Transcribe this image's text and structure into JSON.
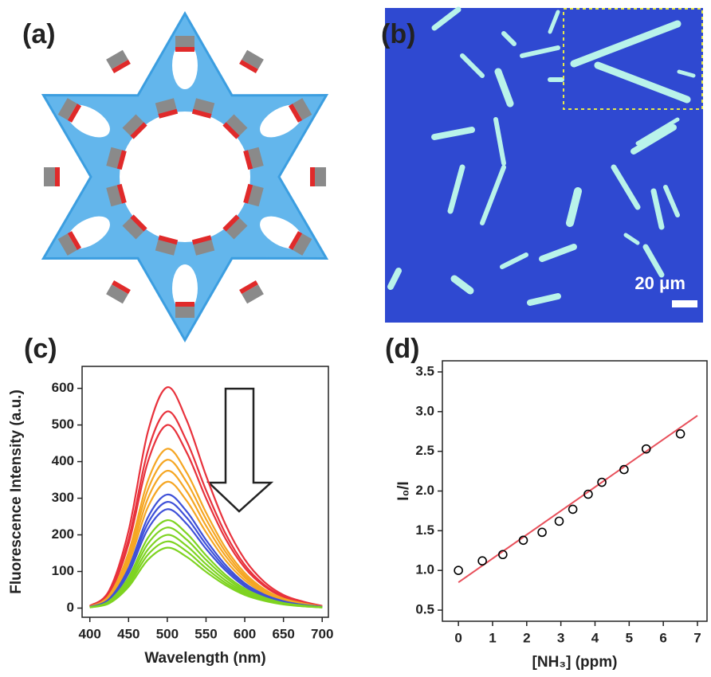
{
  "panel_labels": [
    "(a)",
    "(b)",
    "(c)",
    "(d)"
  ],
  "micrograph": {
    "scale_label": "20 μm"
  },
  "chart_data": [
    {
      "type": "line",
      "x_label": "Wavelength (nm)",
      "y_label": "Fluorescence Intensity (a.u.)",
      "x": [
        400,
        425,
        450,
        475,
        500,
        525,
        550,
        575,
        600,
        625,
        650,
        675,
        700
      ],
      "xlim": [
        390,
        708
      ],
      "xticks": [
        400,
        450,
        500,
        550,
        600,
        650,
        700
      ],
      "ylim": [
        -25,
        660
      ],
      "yticks": [
        0,
        100,
        200,
        300,
        400,
        500,
        600
      ],
      "series": [
        {
          "color": "#e8323c",
          "values": [
            6,
            48,
            211,
            482,
            603,
            513,
            362,
            229,
            133,
            72,
            36,
            18,
            6
          ]
        },
        {
          "color": "#e8323c",
          "values": [
            5,
            43,
            188,
            430,
            537,
            456,
            322,
            204,
            118,
            64,
            32,
            16,
            5
          ]
        },
        {
          "color": "#e8323c",
          "values": [
            5,
            40,
            175,
            400,
            500,
            425,
            300,
            190,
            110,
            60,
            30,
            15,
            5
          ]
        },
        {
          "color": "#f5a623",
          "values": [
            4,
            35,
            152,
            348,
            435,
            370,
            261,
            165,
            96,
            52,
            26,
            13,
            4
          ]
        },
        {
          "color": "#f5a623",
          "values": [
            4,
            32,
            142,
            324,
            405,
            344,
            243,
            154,
            89,
            49,
            24,
            12,
            4
          ]
        },
        {
          "color": "#f5a623",
          "values": [
            4,
            30,
            131,
            300,
            375,
            319,
            225,
            143,
            83,
            45,
            23,
            11,
            4
          ]
        },
        {
          "color": "#f5a623",
          "values": [
            3,
            28,
            121,
            276,
            345,
            293,
            207,
            131,
            76,
            41,
            21,
            10,
            3
          ]
        },
        {
          "color": "#3f51d8",
          "values": [
            3,
            25,
            109,
            248,
            310,
            264,
            186,
            118,
            68,
            37,
            19,
            9,
            3
          ]
        },
        {
          "color": "#3f51d8",
          "values": [
            3,
            23,
            102,
            232,
            290,
            247,
            174,
            110,
            64,
            35,
            17,
            9,
            3
          ]
        },
        {
          "color": "#3f51d8",
          "values": [
            3,
            22,
            95,
            216,
            270,
            230,
            162,
            103,
            59,
            32,
            16,
            8,
            3
          ]
        },
        {
          "color": "#7ed321",
          "values": [
            2,
            19,
            84,
            192,
            240,
            204,
            144,
            91,
            53,
            29,
            14,
            7,
            2
          ]
        },
        {
          "color": "#7ed321",
          "values": [
            2,
            18,
            77,
            176,
            220,
            187,
            132,
            84,
            48,
            26,
            13,
            7,
            2
          ]
        },
        {
          "color": "#7ed321",
          "values": [
            2,
            16,
            70,
            160,
            200,
            170,
            120,
            76,
            44,
            24,
            12,
            6,
            2
          ]
        },
        {
          "color": "#7ed321",
          "values": [
            2,
            15,
            64,
            146,
            182,
            155,
            109,
            69,
            40,
            22,
            11,
            5,
            2
          ]
        },
        {
          "color": "#7ed321",
          "values": [
            2,
            13,
            58,
            132,
            165,
            140,
            99,
            63,
            36,
            20,
            10,
            5,
            2
          ]
        }
      ]
    },
    {
      "type": "scatter",
      "x_label": "[NH₃] (ppm)",
      "y_label": "I₀/I",
      "x": [
        0,
        0.7,
        1.3,
        1.9,
        2.45,
        2.95,
        3.35,
        3.8,
        4.2,
        4.85,
        5.5,
        6.5
      ],
      "values": [
        1.0,
        1.12,
        1.2,
        1.38,
        1.48,
        1.62,
        1.77,
        1.96,
        2.11,
        2.27,
        2.53,
        2.72
      ],
      "color": "#000000",
      "fit": {
        "x": [
          0,
          7
        ],
        "values": [
          0.85,
          2.95
        ],
        "color": "#e8505b"
      },
      "xlim": [
        -0.47,
        7.28
      ],
      "xticks": [
        0,
        1,
        2,
        3,
        4,
        5,
        6,
        7
      ],
      "ylim": [
        0.36,
        3.64
      ],
      "yticks": [
        0.5,
        {
          "value": 1,
          "label": "1.0"
        },
        1.5,
        {
          "value": 2,
          "label": "2.0"
        },
        2.5,
        {
          "value": 3,
          "label": "3.0"
        },
        3.5
      ]
    }
  ]
}
